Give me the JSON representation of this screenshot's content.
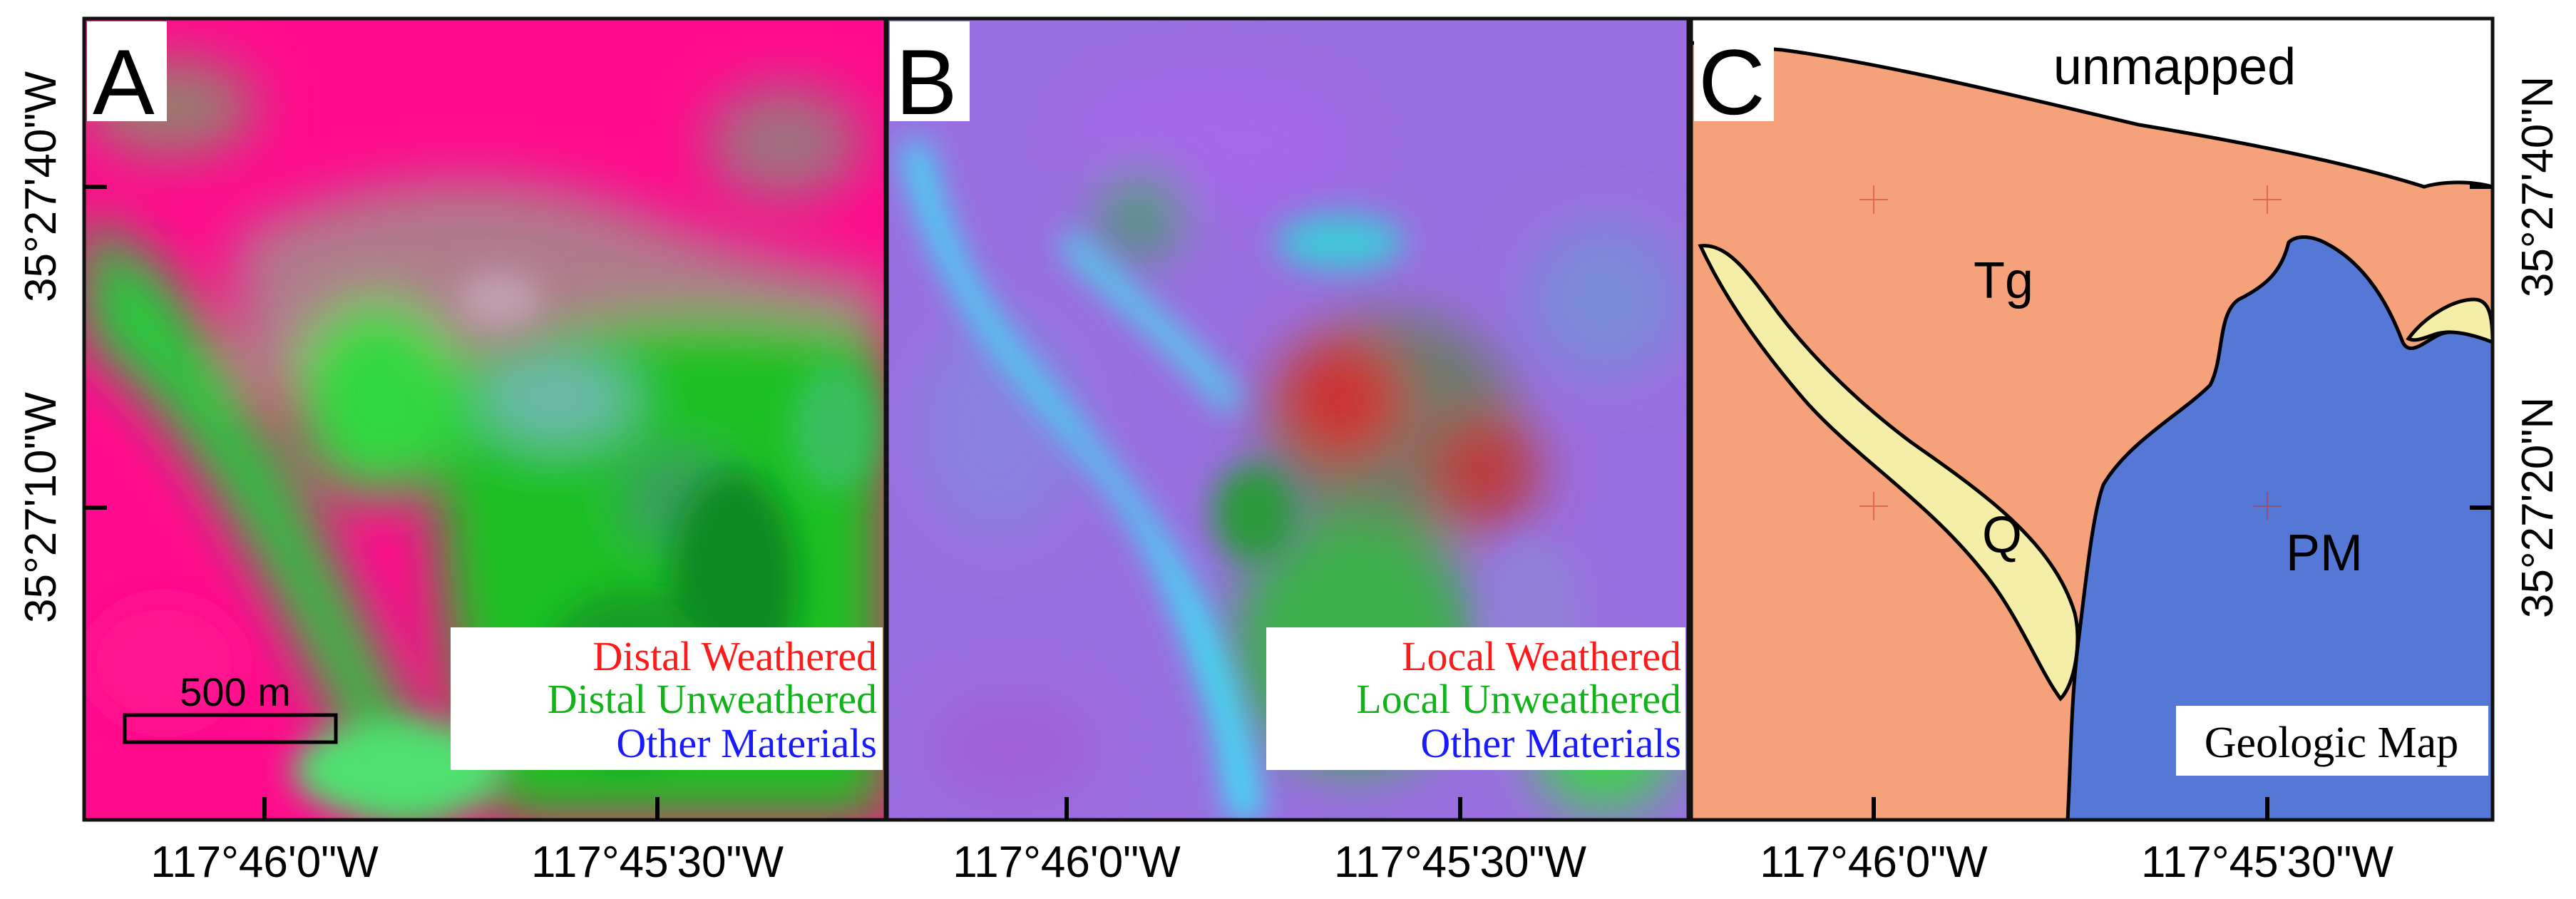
{
  "panels": [
    {
      "letter": "A",
      "legend": {
        "lines": [
          {
            "text": "Distal Weathered",
            "color": "#ff1a1a"
          },
          {
            "text": "Distal Unweathered",
            "color": "#12b21a"
          },
          {
            "text": "Other Materials",
            "color": "#1a1aff"
          }
        ]
      },
      "scale_bar": {
        "label": "500 m"
      }
    },
    {
      "letter": "B",
      "legend": {
        "lines": [
          {
            "text": "Local Weathered",
            "color": "#ff1a1a"
          },
          {
            "text": "Local Unweathered",
            "color": "#12b21a"
          },
          {
            "text": "Other Materials",
            "color": "#1a1aff"
          }
        ]
      }
    },
    {
      "letter": "C",
      "title": "Geologic Map",
      "units": [
        {
          "label": "unmapped",
          "color": "#ffffff"
        },
        {
          "label": "Tg",
          "color": "#f5a27a"
        },
        {
          "label": "Q",
          "color": "#f5eea8"
        },
        {
          "label": "PM",
          "color": "#5577d6"
        }
      ]
    }
  ],
  "axes": {
    "bottom_ticks": [
      "117°46'0\"W",
      "117°45'30\"W",
      "117°46'0\"W",
      "117°45'30\"W",
      "117°46'0\"W",
      "117°45'30\"W"
    ],
    "left_ticks": [
      "35°27'40\"W",
      "35°27'10\"W"
    ],
    "right_ticks": [
      "35°27'40\"N",
      "35°27'20\"N"
    ]
  }
}
